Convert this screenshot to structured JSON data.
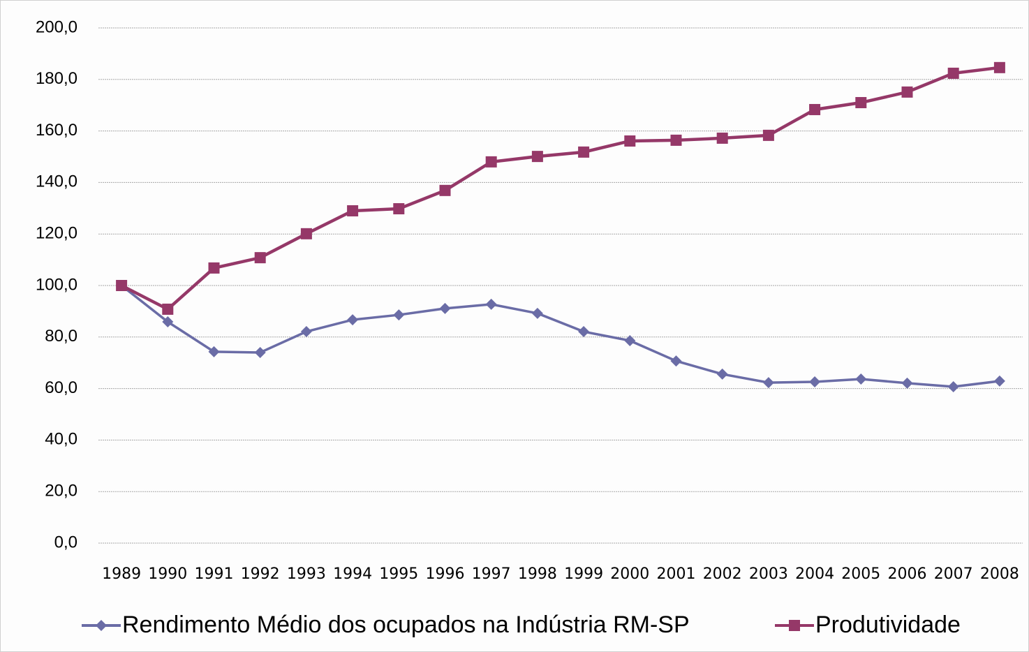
{
  "chart_data": {
    "type": "line",
    "categories": [
      "1989",
      "1990",
      "1991",
      "1992",
      "1993",
      "1994",
      "1995",
      "1996",
      "1997",
      "1998",
      "1999",
      "2000",
      "2001",
      "2002",
      "2003",
      "2004",
      "2005",
      "2006",
      "2007",
      "2008"
    ],
    "series": [
      {
        "name": "Rendimento Médio dos ocupados na Indústria RM-SP",
        "color": "#6a6ca6",
        "marker": "diamond",
        "values": [
          100,
          85.9,
          74.3,
          74.0,
          82.1,
          86.7,
          88.6,
          91.1,
          92.7,
          89.2,
          82.1,
          78.6,
          70.7,
          65.6,
          62.3,
          62.6,
          63.7,
          62.1,
          60.7,
          62.9
        ]
      },
      {
        "name": "Produtividade",
        "color": "#953868",
        "marker": "square",
        "values": [
          100,
          90.8,
          106.8,
          110.8,
          120.1,
          129.0,
          129.8,
          136.9,
          148.0,
          150.1,
          151.8,
          156.1,
          156.4,
          157.2,
          158.3,
          168.3,
          171.0,
          175.1,
          182.4,
          184.6
        ]
      }
    ],
    "ylim": [
      0,
      200
    ],
    "yticks": [
      {
        "value": 0,
        "label": "0,0"
      },
      {
        "value": 20,
        "label": "20,0"
      },
      {
        "value": 40,
        "label": "40,0"
      },
      {
        "value": 60,
        "label": "60,0"
      },
      {
        "value": 80,
        "label": "80,0"
      },
      {
        "value": 100,
        "label": "100,0"
      },
      {
        "value": 120,
        "label": "120,0"
      },
      {
        "value": 140,
        "label": "140,0"
      },
      {
        "value": 160,
        "label": "160,0"
      },
      {
        "value": 180,
        "label": "180,0"
      },
      {
        "value": 200,
        "label": "200,0"
      }
    ],
    "grid": true,
    "legend": "bottom"
  }
}
